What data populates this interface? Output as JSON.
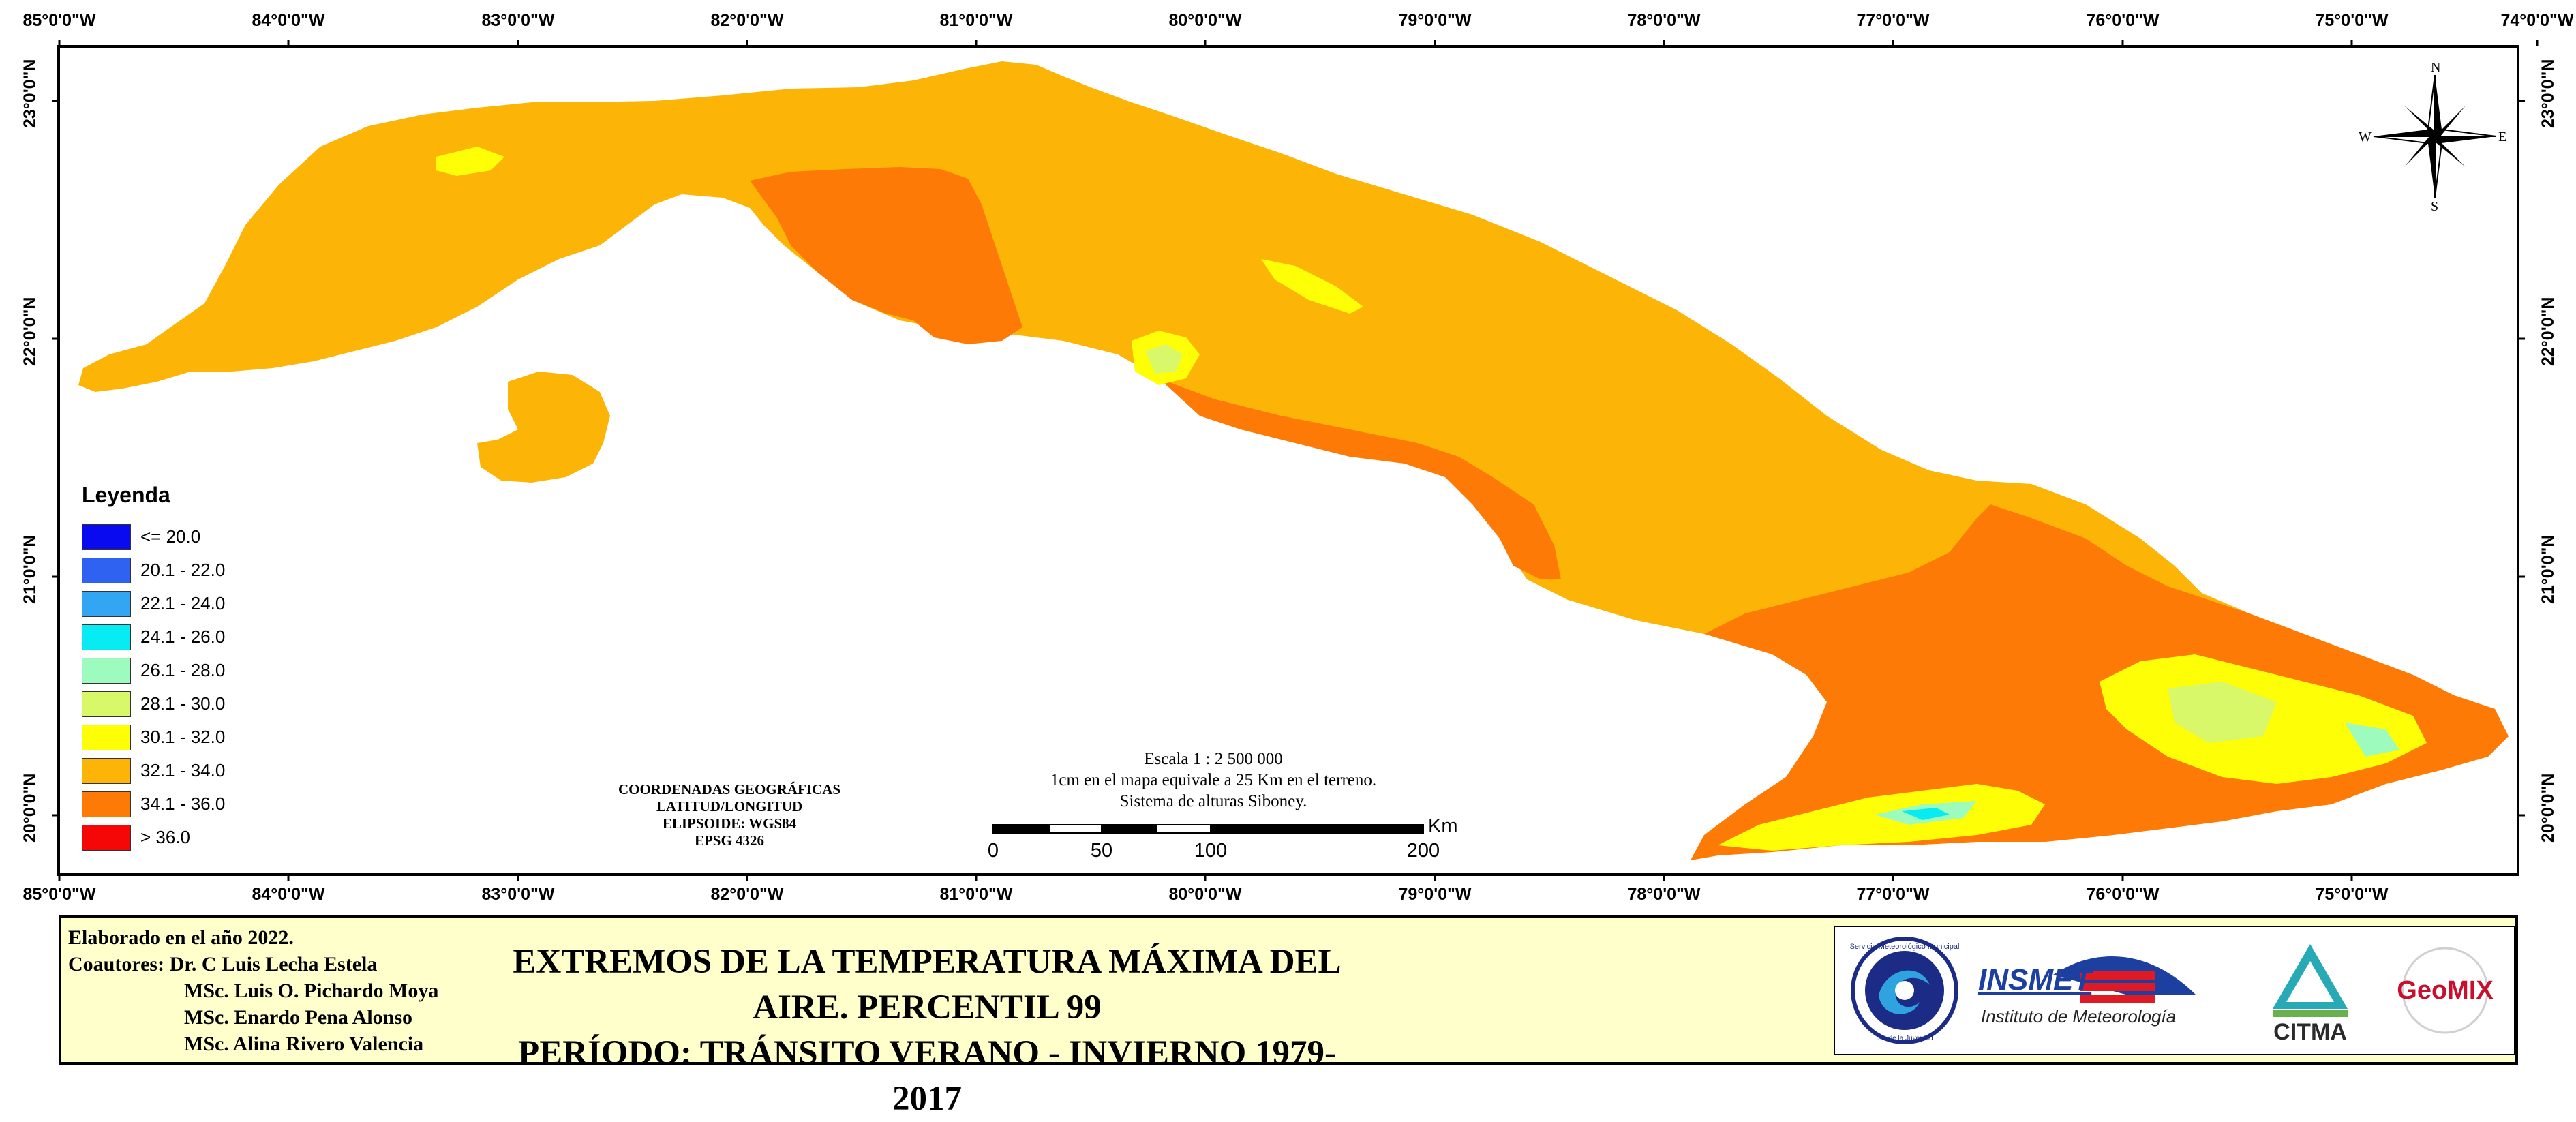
{
  "colors": {
    "class_32_34": "#fcb507",
    "class_34_36": "#fd7a07",
    "class_30_32": "#fefe07",
    "class_28_30": "#d8f86a",
    "class_26_28": "#9dfcbd",
    "class_24_26": "#07ebf3",
    "panel_bg": "#ffffcc"
  },
  "top_lon_labels": [
    "85°0'0\"W",
    "84°0'0\"W",
    "83°0'0\"W",
    "82°0'0\"W",
    "81°0'0\"W",
    "80°0'0\"W",
    "79°0'0\"W",
    "78°0'0\"W",
    "77°0'0\"W",
    "76°0'0\"W",
    "75°0'0\"W",
    "74°0'0\"W"
  ],
  "bottom_lon_labels": [
    "85°0'0\"W",
    "84°0'0\"W",
    "83°0'0\"W",
    "82°0'0\"W",
    "81°0'0\"W",
    "80°0'0\"W",
    "79°0'0\"W",
    "78°0'0\"W",
    "77°0'0\"W",
    "76°0'0\"W",
    "75°0'0\"W"
  ],
  "lat_labels": [
    "23°0'0\"N",
    "22°0'0\"N",
    "21°0'0\"N",
    "20°0'0\"N"
  ],
  "compass": {
    "n": "N",
    "s": "S",
    "e": "E",
    "w": "W"
  },
  "legend": {
    "title": "Leyenda",
    "items": [
      {
        "label": "<= 20.0",
        "color": "#0a0af0"
      },
      {
        "label": "20.1 - 22.0",
        "color": "#2f62f0"
      },
      {
        "label": "22.1 - 24.0",
        "color": "#33a6f3"
      },
      {
        "label": "24.1 - 26.0",
        "color": "#07ebf3"
      },
      {
        "label": "26.1 - 28.0",
        "color": "#9dfcbd"
      },
      {
        "label": "28.1 - 30.0",
        "color": "#d8f86a"
      },
      {
        "label": "30.1 - 32.0",
        "color": "#fefe07"
      },
      {
        "label": "32.1 - 34.0",
        "color": "#fcb507"
      },
      {
        "label": "34.1 - 36.0",
        "color": "#fd7a07"
      },
      {
        "label": "> 36.0",
        "color": "#f50707"
      }
    ]
  },
  "coord_note": {
    "line1": "COORDENADAS GEOGRÁFICAS",
    "line2": "LATITUD/LONGITUD",
    "line3": "ELIPSOIDE: WGS84",
    "line4": "EPSG 4326"
  },
  "scale": {
    "line1": "Escala 1 : 2 500 000",
    "line2": "1cm en el mapa equivale a 25 Km en el terreno.",
    "line3": "Sistema de alturas Siboney.",
    "ticks": [
      "0",
      "50",
      "100",
      "200"
    ],
    "unit": "Km"
  },
  "credits": {
    "line1": "Elaborado en el año 2022.",
    "line2": "Coautores: Dr. C Luis Lecha Estela",
    "line3": "MSc. Luis O. Pichardo Moya",
    "line4": "MSc. Enardo Pena Alonso",
    "line5": "MSc. Alina Rivero Valencia"
  },
  "title": {
    "line1": "EXTREMOS DE LA TEMPERATURA MÁXIMA DEL AIRE. PERCENTIL 99",
    "line2": "PERÍODO: TRÁNSITO VERANO - INVIERNO 1979-2017"
  },
  "logos": {
    "smm_text": "Servicio Meteorológico Municipal",
    "smm_sub": "Isla de la Juventud",
    "insmet_name": "INSMET",
    "insmet_sub": "Instituto de Meteorología",
    "citma": "CITMA",
    "geomix": "GeoMIX"
  }
}
